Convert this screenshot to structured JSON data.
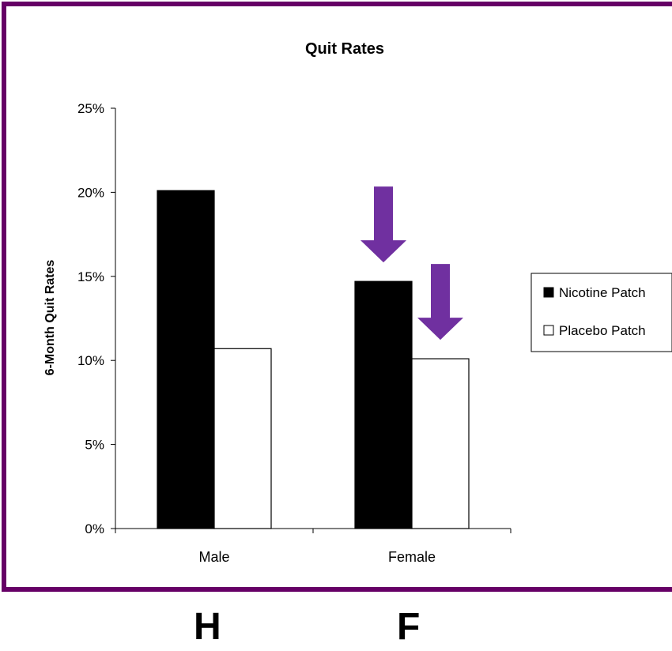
{
  "colors": {
    "frame": "#660066",
    "arrow": "#7030a0",
    "nicotine": "#000000",
    "placebo": "#ffffff"
  },
  "chart_data": {
    "type": "bar",
    "title": "Quit Rates",
    "xlabel": "",
    "ylabel": "6-Month Quit Rates",
    "categories": [
      "Male",
      "Female"
    ],
    "series": [
      {
        "name": "Nicotine Patch",
        "values": [
          0.201,
          0.147
        ]
      },
      {
        "name": "Placebo Patch",
        "values": [
          0.107,
          0.101
        ]
      }
    ],
    "ylim": [
      0,
      0.25
    ],
    "yticks": [
      "0%",
      "5%",
      "10%",
      "15%",
      "20%",
      "25%"
    ],
    "legend_position": "right",
    "grid": false,
    "annotations": [
      {
        "type": "down-arrow",
        "category": "Female",
        "series": "Nicotine Patch"
      },
      {
        "type": "down-arrow",
        "category": "Female",
        "series": "Placebo Patch"
      }
    ]
  },
  "footer": {
    "left_letter": "H",
    "right_letter": "F"
  }
}
